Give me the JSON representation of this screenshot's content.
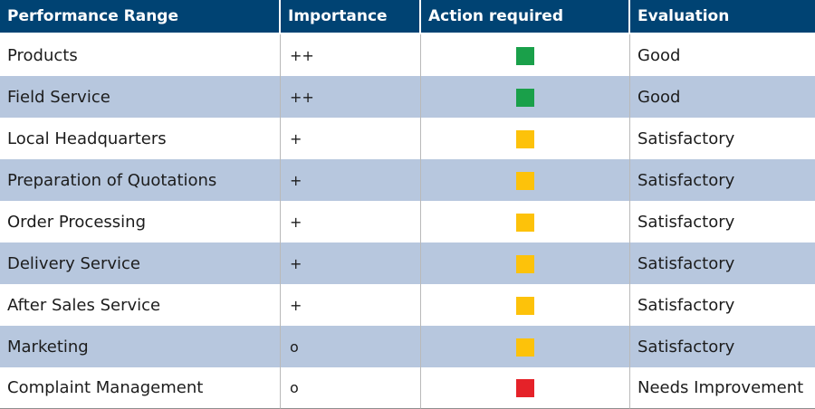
{
  "table": {
    "headers": [
      "Performance Range",
      "Importance",
      "Action required",
      "Evaluation"
    ],
    "rows": [
      {
        "range": "Products",
        "importance": "++",
        "status": "green",
        "evaluation": "Good"
      },
      {
        "range": "Field Service",
        "importance": "++",
        "status": "green",
        "evaluation": "Good"
      },
      {
        "range": "Local Headquarters",
        "importance": "+",
        "status": "yellow",
        "evaluation": "Satisfactory"
      },
      {
        "range": "Preparation of Quotations",
        "importance": "+",
        "status": "yellow",
        "evaluation": "Satisfactory"
      },
      {
        "range": "Order Processing",
        "importance": "+",
        "status": "yellow",
        "evaluation": "Satisfactory"
      },
      {
        "range": "Delivery Service",
        "importance": "+",
        "status": "yellow",
        "evaluation": "Satisfactory"
      },
      {
        "range": "After Sales Service",
        "importance": "+",
        "status": "yellow",
        "evaluation": "Satisfactory"
      },
      {
        "range": "Marketing",
        "importance": "o",
        "status": "yellow",
        "evaluation": "Satisfactory"
      },
      {
        "range": "Complaint Management",
        "importance": "o",
        "status": "red",
        "evaluation": "Needs Improvement"
      }
    ]
  },
  "colors": {
    "header_bg": "#004373",
    "alt_row_bg": "#b7c7de",
    "green": "#1aa04a",
    "yellow": "#fdc20a",
    "red": "#e52229"
  }
}
